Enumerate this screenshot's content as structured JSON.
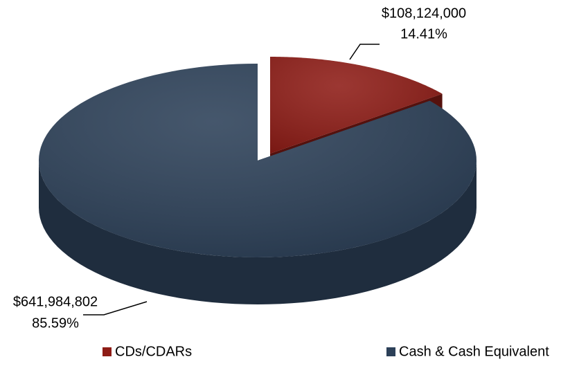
{
  "chart_data": {
    "type": "pie",
    "categories": [
      "CDs/CDARs",
      "Cash & Cash Equivalent"
    ],
    "values": [
      14.41,
      85.59
    ],
    "value_labels": [
      "14.41%",
      "85.59%"
    ],
    "amounts": [
      108124000,
      641984802
    ],
    "amount_labels": [
      "$108,124,000",
      "$641,984,802"
    ],
    "colors": [
      "#8e1c16",
      "#2c4058"
    ],
    "legend": "bottom"
  }
}
